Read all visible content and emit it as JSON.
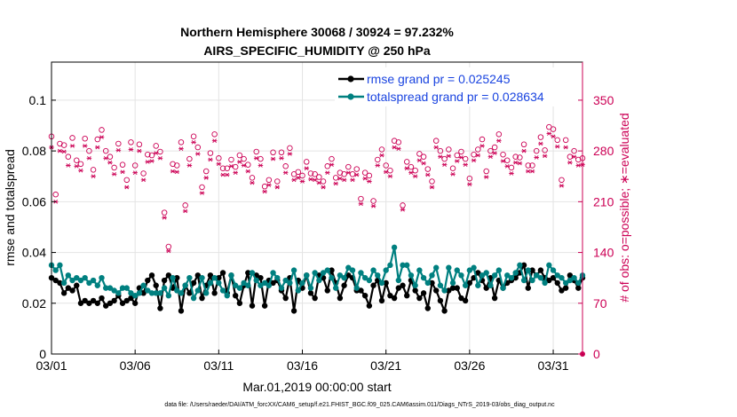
{
  "chart_data": {
    "type": "line",
    "title": [
      "Northern Hemisphere 30068 / 30924 = 97.232%",
      "AIRS_SPECIFIC_HUMIDITY @ 250 hPa"
    ],
    "xlabel": "Mar.01,2019 00:00:00 start",
    "ylabel": "rmse and totalspread",
    "ylabel_right": "# of obs: o=possible; ∗=evaluated",
    "x_tick_labels": [
      "03/01",
      "03/06",
      "03/11",
      "03/16",
      "03/21",
      "03/26",
      "03/31"
    ],
    "x_tick_values": [
      0,
      5,
      10,
      15,
      20,
      25,
      30
    ],
    "xlim": [
      0,
      31.75
    ],
    "ylim": [
      0,
      0.115
    ],
    "y_ticks": [
      0,
      0.02,
      0.04,
      0.06,
      0.08,
      0.1
    ],
    "y_tick_labels": [
      "0",
      "0.02",
      "0.04",
      "0.06",
      "0.08",
      "0.1"
    ],
    "ylim_right": [
      0,
      402.5
    ],
    "y_ticks_right": [
      0,
      70,
      140,
      210,
      280,
      350
    ],
    "y_tick_labels_right": [
      "0",
      "70",
      "140",
      "210",
      "280",
      "350"
    ],
    "grid": true,
    "legend_position": "top-right",
    "series": [
      {
        "name": "rmse grand pr = 0.025245",
        "color": "#000000",
        "axis": "left",
        "marker": "dot",
        "values": [
          0.03,
          0.029,
          0.028,
          0.024,
          0.026,
          0.025,
          0.027,
          0.02,
          0.021,
          0.02,
          0.021,
          0.02,
          0.022,
          0.019,
          0.02,
          0.021,
          0.023,
          0.02,
          0.021,
          0.022,
          0.02,
          0.026,
          0.024,
          0.029,
          0.031,
          0.027,
          0.018,
          0.029,
          0.031,
          0.026,
          0.03,
          0.017,
          0.027,
          0.024,
          0.028,
          0.031,
          0.022,
          0.027,
          0.031,
          0.024,
          0.03,
          0.032,
          0.024,
          0.031,
          0.023,
          0.02,
          0.027,
          0.032,
          0.019,
          0.031,
          0.03,
          0.019,
          0.029,
          0.028,
          0.029,
          0.025,
          0.022,
          0.03,
          0.017,
          0.029,
          0.026,
          0.031,
          0.024,
          0.022,
          0.031,
          0.03,
          0.025,
          0.033,
          0.028,
          0.022,
          0.027,
          0.031,
          0.03,
          0.025,
          0.025,
          0.023,
          0.019,
          0.027,
          0.029,
          0.021,
          0.028,
          0.023,
          0.022,
          0.026,
          0.027,
          0.023,
          0.029,
          0.025,
          0.022,
          0.024,
          0.018,
          0.028,
          0.025,
          0.021,
          0.017,
          0.025,
          0.026,
          0.026,
          0.022,
          0.021,
          0.028,
          0.03,
          0.032,
          0.029,
          0.026,
          0.03,
          0.022,
          0.029,
          0.026,
          0.028,
          0.029,
          0.03,
          0.032,
          0.035,
          0.026,
          0.033,
          0.031,
          0.033,
          0.03,
          0.029,
          0.03,
          0.028,
          0.025,
          0.026,
          0.031,
          0.029,
          0.026,
          0.03
        ]
      },
      {
        "name": "totalspread grand pr = 0.028634",
        "color": "#008080",
        "axis": "left",
        "marker": "dot",
        "values": [
          0.035,
          0.033,
          0.035,
          0.028,
          0.031,
          0.029,
          0.03,
          0.029,
          0.03,
          0.028,
          0.029,
          0.027,
          0.03,
          0.026,
          0.026,
          0.025,
          0.024,
          0.026,
          0.026,
          0.024,
          0.023,
          0.024,
          0.027,
          0.025,
          0.024,
          0.024,
          0.024,
          0.026,
          0.023,
          0.03,
          0.025,
          0.024,
          0.027,
          0.03,
          0.022,
          0.025,
          0.03,
          0.024,
          0.028,
          0.03,
          0.028,
          0.025,
          0.023,
          0.031,
          0.027,
          0.026,
          0.028,
          0.027,
          0.032,
          0.029,
          0.027,
          0.028,
          0.027,
          0.032,
          0.03,
          0.026,
          0.029,
          0.028,
          0.033,
          0.025,
          0.028,
          0.031,
          0.026,
          0.032,
          0.029,
          0.032,
          0.033,
          0.03,
          0.026,
          0.031,
          0.03,
          0.034,
          0.033,
          0.026,
          0.032,
          0.03,
          0.029,
          0.033,
          0.031,
          0.028,
          0.033,
          0.035,
          0.042,
          0.029,
          0.035,
          0.035,
          0.031,
          0.027,
          0.033,
          0.03,
          0.028,
          0.031,
          0.034,
          0.027,
          0.025,
          0.034,
          0.028,
          0.033,
          0.031,
          0.027,
          0.033,
          0.034,
          0.027,
          0.031,
          0.032,
          0.027,
          0.031,
          0.033,
          0.026,
          0.031,
          0.03,
          0.032,
          0.035,
          0.029,
          0.033,
          0.029,
          0.031,
          0.03,
          0.028,
          0.035,
          0.033,
          0.031,
          0.03,
          0.028,
          0.029,
          0.03,
          0.028,
          0.031
        ]
      },
      {
        "name": "obs possible",
        "color": "#cc0055",
        "axis": "right",
        "marker": "circle",
        "values": [
          300,
          220,
          290,
          288,
          272,
          298,
          267,
          262,
          297,
          280,
          254,
          296,
          309,
          280,
          272,
          257,
          290,
          261,
          240,
          292,
          260,
          289,
          249,
          275,
          274,
          287,
          279,
          195,
          148,
          262,
          260,
          292,
          205,
          269,
          300,
          285,
          230,
          252,
          277,
          303,
          270,
          256,
          256,
          268,
          258,
          274,
          269,
          261,
          243,
          279,
          269,
          231,
          240,
          278,
          238,
          278,
          259,
          284,
          248,
          251,
          246,
          265,
          249,
          248,
          244,
          238,
          259,
          269,
          243,
          250,
          248,
          258,
          248,
          255,
          214,
          250,
          246,
          211,
          268,
          282,
          260,
          253,
          294,
          292,
          205,
          265,
          258,
          253,
          276,
          272,
          255,
          238,
          294,
          280,
          269,
          282,
          256,
          274,
          279,
          269,
          242,
          275,
          282,
          296,
          252,
          280,
          285,
          303,
          275,
          267,
          257,
          272,
          271,
          289,
          260,
          260,
          280,
          299,
          281,
          313,
          310,
          295,
          240,
          295,
          272,
          280,
          268,
          270
        ]
      },
      {
        "name": "obs evaluated",
        "color": "#cc0055",
        "axis": "right",
        "marker": "asterisk",
        "values": [
          285,
          210,
          280,
          279,
          260,
          287,
          259,
          253,
          287,
          270,
          245,
          285,
          299,
          270,
          264,
          248,
          281,
          251,
          230,
          282,
          250,
          280,
          240,
          265,
          266,
          277,
          270,
          188,
          142,
          252,
          251,
          283,
          197,
          260,
          292,
          276,
          222,
          243,
          268,
          294,
          262,
          247,
          247,
          259,
          250,
          265,
          260,
          252,
          236,
          270,
          260,
          224,
          233,
          269,
          230,
          270,
          250,
          276,
          240,
          243,
          238,
          256,
          241,
          240,
          236,
          230,
          250,
          261,
          235,
          242,
          240,
          250,
          240,
          247,
          207,
          242,
          238,
          204,
          260,
          274,
          251,
          245,
          285,
          283,
          199,
          256,
          250,
          245,
          267,
          263,
          247,
          230,
          285,
          272,
          261,
          273,
          248,
          266,
          271,
          261,
          234,
          267,
          274,
          287,
          244,
          272,
          277,
          294,
          266,
          259,
          249,
          264,
          263,
          280,
          252,
          252,
          271,
          290,
          273,
          304,
          300,
          286,
          232,
          285,
          264,
          272,
          260,
          261
        ]
      }
    ]
  },
  "footer": "data file: /Users/raeder/DAI/ATM_forcXX/CAM6_setup/f.e21.FHIST_BGC.f09_025.CAM6assim.011/Diags_NTrS_2019-03/obs_diag_output.nc"
}
